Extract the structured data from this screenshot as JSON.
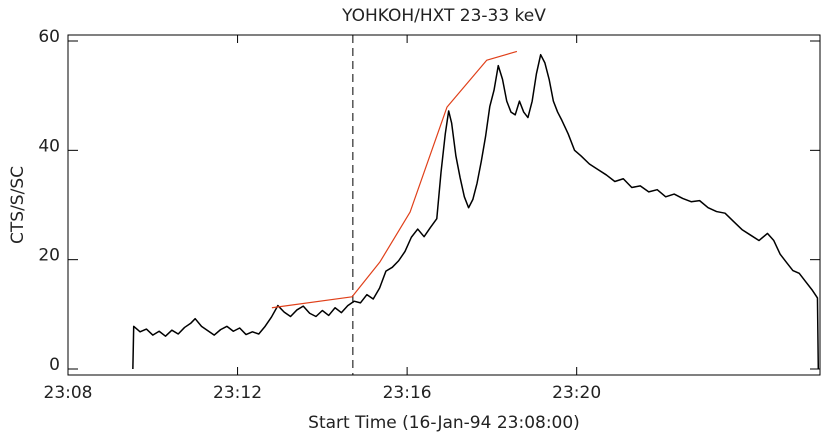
{
  "chart_data": {
    "type": "line",
    "title": "YOHKOH/HXT 23-33 keV",
    "xlabel": "Start Time (16-Jan-94 23:08:00)",
    "ylabel": "CTS/S/SC",
    "xlim": [
      0,
      17.74
    ],
    "ylim": [
      -1.1,
      61.1
    ],
    "xticks": [
      {
        "value": 0,
        "label": "23:08"
      },
      {
        "value": 4,
        "label": "23:12"
      },
      {
        "value": 8,
        "label": "23:16"
      },
      {
        "value": 12,
        "label": "23:20"
      }
    ],
    "yticks": [
      0,
      20,
      40,
      60
    ],
    "vlines": [
      6.72
    ],
    "series": [
      {
        "color": "#000000",
        "x": [
          1.53,
          1.55,
          1.7,
          1.85,
          2.0,
          2.15,
          2.3,
          2.45,
          2.6,
          2.75,
          2.9,
          3.0,
          3.15,
          3.3,
          3.45,
          3.6,
          3.75,
          3.9,
          4.05,
          4.2,
          4.35,
          4.5,
          4.65,
          4.8,
          4.95,
          5.1,
          5.25,
          5.4,
          5.55,
          5.7,
          5.85,
          6.0,
          6.15,
          6.3,
          6.45,
          6.6,
          6.75,
          6.9,
          7.05,
          7.2,
          7.35,
          7.5,
          7.65,
          7.8,
          7.95,
          8.1,
          8.25,
          8.4,
          8.55,
          8.7,
          8.8,
          8.9,
          8.98,
          9.05,
          9.15,
          9.25,
          9.35,
          9.45,
          9.55,
          9.65,
          9.75,
          9.85,
          9.95,
          10.05,
          10.15,
          10.25,
          10.35,
          10.45,
          10.55,
          10.65,
          10.75,
          10.85,
          10.95,
          11.05,
          11.15,
          11.25,
          11.35,
          11.45,
          11.55,
          11.65,
          11.8,
          11.95,
          12.1,
          12.3,
          12.5,
          12.7,
          12.9,
          13.1,
          13.3,
          13.5,
          13.7,
          13.9,
          14.1,
          14.3,
          14.5,
          14.7,
          14.9,
          15.1,
          15.3,
          15.5,
          15.7,
          15.9,
          16.1,
          16.3,
          16.5,
          16.65,
          16.8,
          16.95,
          17.1,
          17.25,
          17.4,
          17.55,
          17.68,
          17.7
        ],
        "values": [
          0,
          7.8,
          6.8,
          7.3,
          6.2,
          6.9,
          6.0,
          7.1,
          6.4,
          7.6,
          8.4,
          9.2,
          7.8,
          7.0,
          6.2,
          7.2,
          7.8,
          6.9,
          7.5,
          6.3,
          6.8,
          6.4,
          7.8,
          9.5,
          11.6,
          10.4,
          9.6,
          10.8,
          11.5,
          10.2,
          9.6,
          10.7,
          9.8,
          11.2,
          10.3,
          11.6,
          12.4,
          12.1,
          13.6,
          12.8,
          14.8,
          17.9,
          18.6,
          19.8,
          21.5,
          24.1,
          25.6,
          24.2,
          25.9,
          27.5,
          36,
          43,
          47.2,
          45,
          39,
          35,
          31.5,
          29.5,
          31,
          34,
          38,
          42.5,
          48,
          51,
          55.5,
          53,
          49,
          47,
          46.5,
          49,
          47,
          46,
          49,
          54,
          57.5,
          56,
          53,
          49,
          47,
          45.5,
          43,
          40,
          39,
          37.5,
          36.5,
          35.5,
          34.3,
          34.8,
          33.2,
          33.5,
          32.4,
          32.8,
          31.5,
          32,
          31.2,
          30.6,
          30.8,
          29.5,
          28.8,
          28.5,
          27,
          25.5,
          24.5,
          23.5,
          24.8,
          23.5,
          21,
          19.5,
          18,
          17.5,
          16,
          14.5,
          13,
          0
        ]
      },
      {
        "color": "#e0401a",
        "x": [
          4.81,
          6.7,
          7.36,
          8.07,
          8.94,
          9.88,
          10.59
        ],
        "values": [
          11.2,
          13.2,
          19.6,
          28.7,
          47.9,
          56.5,
          58.1
        ]
      }
    ]
  }
}
